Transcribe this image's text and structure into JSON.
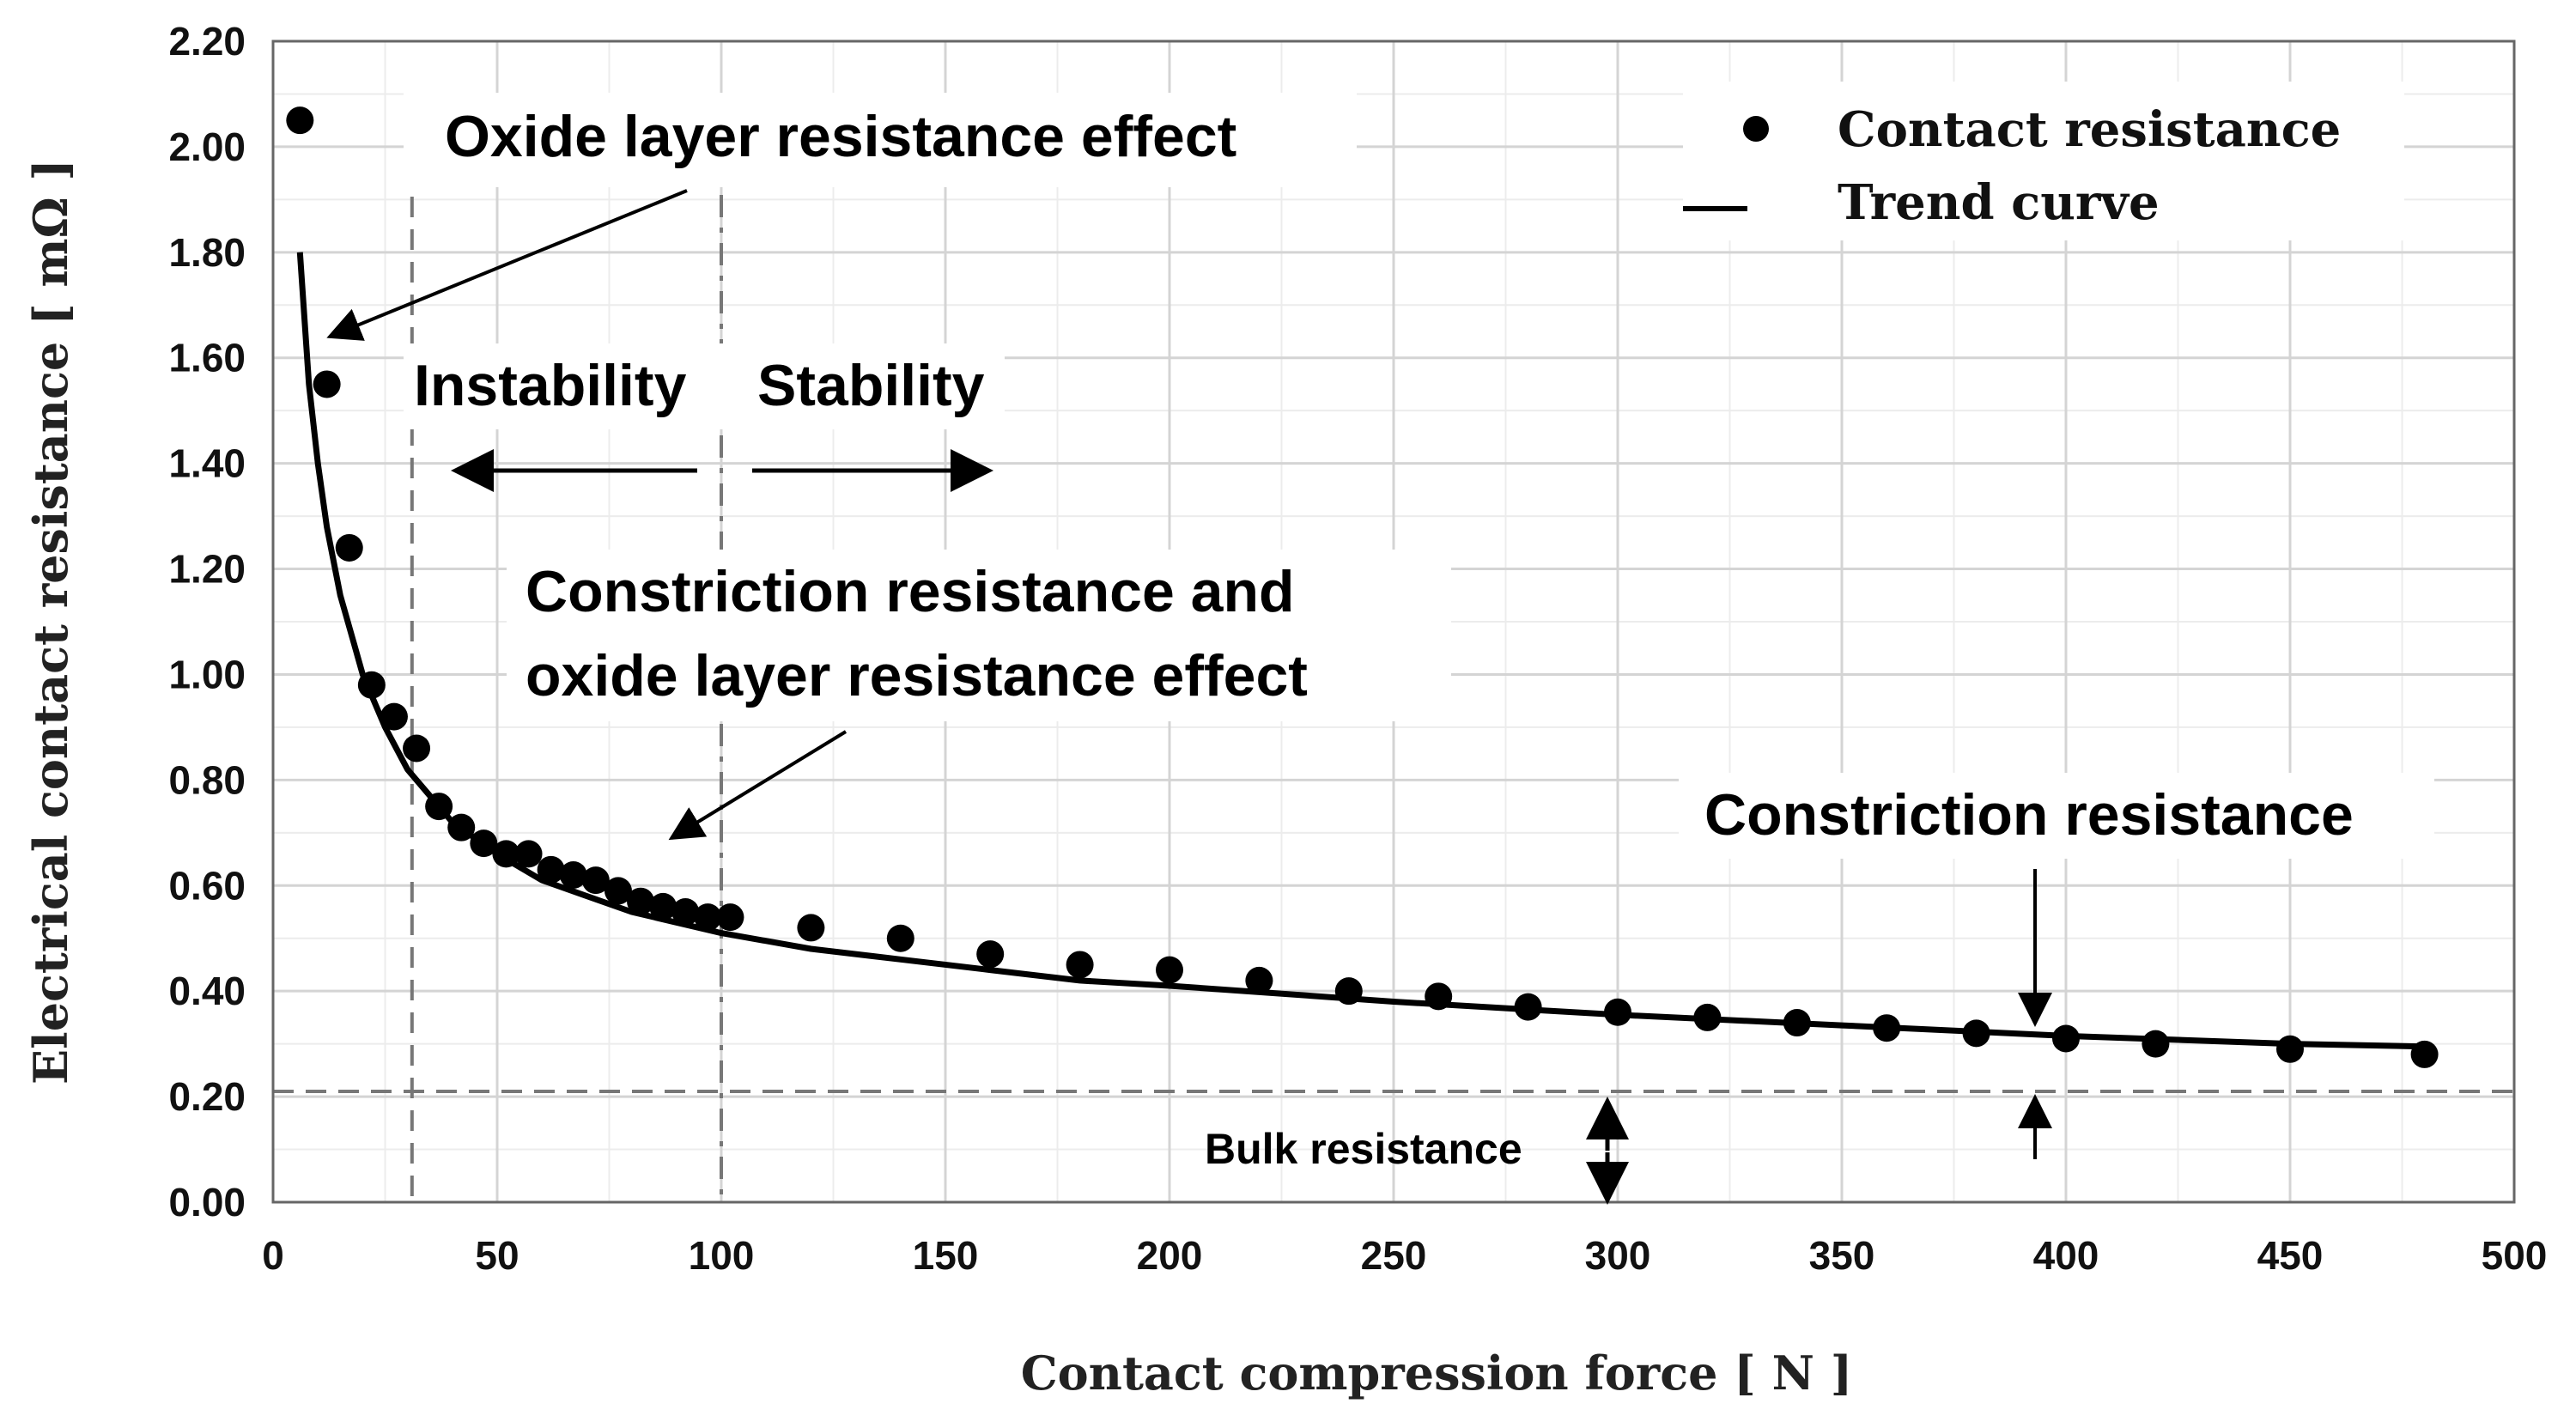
{
  "chart_data": {
    "type": "scatter",
    "xlabel": "Contact compression force [ N ]",
    "ylabel": "Electrical contact resistance [ mΩ ]",
    "xlim": [
      0,
      500
    ],
    "ylim": [
      0,
      2.2
    ],
    "x_ticks": [
      "0",
      "50",
      "100",
      "150",
      "200",
      "250",
      "300",
      "350",
      "400",
      "450",
      "500"
    ],
    "y_ticks": [
      "0.00",
      "0.20",
      "0.40",
      "0.60",
      "0.80",
      "1.00",
      "1.20",
      "1.40",
      "1.60",
      "1.80",
      "2.00",
      "2.20"
    ],
    "grid": true,
    "legend_position": "top-right",
    "series": [
      {
        "name": "Contact resistance",
        "style": "markers",
        "points": [
          [
            6,
            2.05
          ],
          [
            12,
            1.55
          ],
          [
            17,
            1.24
          ],
          [
            22,
            0.98
          ],
          [
            27,
            0.92
          ],
          [
            32,
            0.86
          ],
          [
            37,
            0.75
          ],
          [
            42,
            0.71
          ],
          [
            47,
            0.68
          ],
          [
            52,
            0.66
          ],
          [
            57,
            0.66
          ],
          [
            62,
            0.63
          ],
          [
            67,
            0.62
          ],
          [
            72,
            0.61
          ],
          [
            77,
            0.59
          ],
          [
            82,
            0.57
          ],
          [
            87,
            0.56
          ],
          [
            92,
            0.55
          ],
          [
            97,
            0.54
          ],
          [
            102,
            0.54
          ],
          [
            120,
            0.52
          ],
          [
            140,
            0.5
          ],
          [
            160,
            0.47
          ],
          [
            180,
            0.45
          ],
          [
            200,
            0.44
          ],
          [
            220,
            0.42
          ],
          [
            240,
            0.4
          ],
          [
            260,
            0.39
          ],
          [
            280,
            0.37
          ],
          [
            300,
            0.36
          ],
          [
            320,
            0.35
          ],
          [
            340,
            0.34
          ],
          [
            360,
            0.33
          ],
          [
            380,
            0.32
          ],
          [
            400,
            0.31
          ],
          [
            420,
            0.3
          ],
          [
            450,
            0.29
          ],
          [
            480,
            0.28
          ]
        ]
      },
      {
        "name": "Trend curve",
        "style": "line",
        "points": [
          [
            6,
            1.8
          ],
          [
            8,
            1.55
          ],
          [
            10,
            1.4
          ],
          [
            12,
            1.28
          ],
          [
            15,
            1.15
          ],
          [
            18,
            1.06
          ],
          [
            20,
            1.0
          ],
          [
            25,
            0.9
          ],
          [
            30,
            0.82
          ],
          [
            35,
            0.77
          ],
          [
            40,
            0.72
          ],
          [
            50,
            0.66
          ],
          [
            60,
            0.61
          ],
          [
            70,
            0.58
          ],
          [
            80,
            0.55
          ],
          [
            90,
            0.53
          ],
          [
            100,
            0.51
          ],
          [
            120,
            0.48
          ],
          [
            140,
            0.46
          ],
          [
            160,
            0.44
          ],
          [
            180,
            0.42
          ],
          [
            200,
            0.41
          ],
          [
            250,
            0.38
          ],
          [
            300,
            0.355
          ],
          [
            350,
            0.335
          ],
          [
            400,
            0.315
          ],
          [
            450,
            0.3
          ],
          [
            480,
            0.295
          ]
        ]
      }
    ],
    "reference_lines": [
      {
        "axis": "x",
        "value": 31,
        "style": "dashed"
      },
      {
        "axis": "x",
        "value": 100,
        "style": "dashdot"
      },
      {
        "axis": "y",
        "value": 0.21,
        "style": "dashed"
      }
    ],
    "annotations": {
      "oxide": "Oxide layer resistance effect",
      "instability": "Instability",
      "stability": "Stability",
      "constriction_oxide_line1": "Constriction resistance and",
      "constriction_oxide_line2": "oxide layer resistance effect",
      "constriction": "Constriction resistance",
      "bulk": "Bulk resistance"
    }
  }
}
